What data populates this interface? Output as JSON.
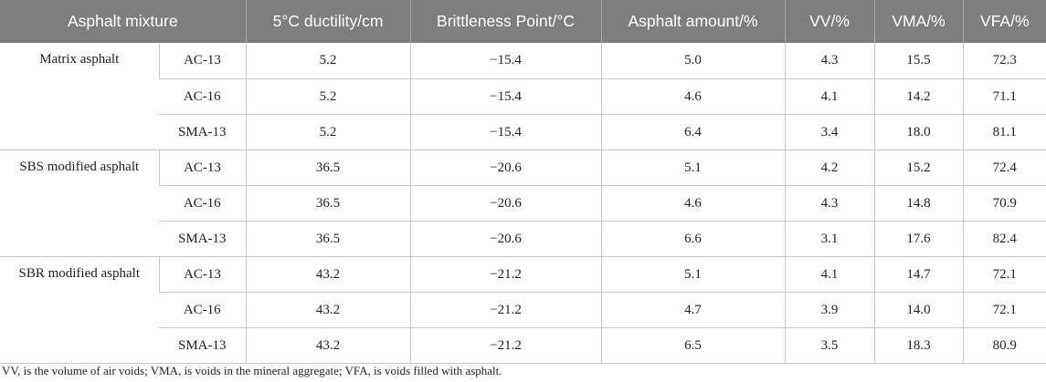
{
  "table": {
    "headers": [
      "Asphalt mixture",
      "5°C ductility/cm",
      "Brittleness Point/°C",
      "Asphalt amount/%",
      "VV/%",
      "VMA/%",
      "VFA/%"
    ],
    "groups": [
      {
        "name": "Matrix asphalt",
        "rows": [
          {
            "mix": "AC-13",
            "ductility": "5.2",
            "brittleness": "−15.4",
            "amount": "5.0",
            "vv": "4.3",
            "vma": "15.5",
            "vfa": "72.3"
          },
          {
            "mix": "AC-16",
            "ductility": "5.2",
            "brittleness": "−15.4",
            "amount": "4.6",
            "vv": "4.1",
            "vma": "14.2",
            "vfa": "71.1"
          },
          {
            "mix": "SMA-13",
            "ductility": "5.2",
            "brittleness": "−15.4",
            "amount": "6.4",
            "vv": "3.4",
            "vma": "18.0",
            "vfa": "81.1"
          }
        ]
      },
      {
        "name": "SBS modified asphalt",
        "rows": [
          {
            "mix": "AC-13",
            "ductility": "36.5",
            "brittleness": "−20.6",
            "amount": "5.1",
            "vv": "4.2",
            "vma": "15.2",
            "vfa": "72.4"
          },
          {
            "mix": "AC-16",
            "ductility": "36.5",
            "brittleness": "−20.6",
            "amount": "4.6",
            "vv": "4.3",
            "vma": "14.8",
            "vfa": "70.9"
          },
          {
            "mix": "SMA-13",
            "ductility": "36.5",
            "brittleness": "−20.6",
            "amount": "6.6",
            "vv": "3.1",
            "vma": "17.6",
            "vfa": "82.4"
          }
        ]
      },
      {
        "name": "SBR modified asphalt",
        "rows": [
          {
            "mix": "AC-13",
            "ductility": "43.2",
            "brittleness": "−21.2",
            "amount": "5.1",
            "vv": "4.1",
            "vma": "14.7",
            "vfa": "72.1"
          },
          {
            "mix": "AC-16",
            "ductility": "43.2",
            "brittleness": "−21.2",
            "amount": "4.7",
            "vv": "3.9",
            "vma": "14.0",
            "vfa": "72.1"
          },
          {
            "mix": "SMA-13",
            "ductility": "43.2",
            "brittleness": "−21.2",
            "amount": "6.5",
            "vv": "3.5",
            "vma": "18.3",
            "vfa": "80.9"
          }
        ]
      }
    ]
  },
  "footnote": "VV, is the volume of air voids; VMA, is voids in the mineral aggregate; VFA, is voids filled with asphalt."
}
